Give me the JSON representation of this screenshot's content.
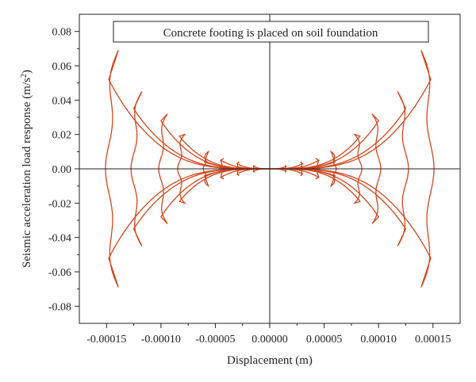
{
  "chart_data": {
    "type": "line",
    "title": "",
    "annotation": "Concrete footing is placed on soil foundation",
    "xlabel": "Displacement (m)",
    "ylabel_main": "Seismic acceleration load response (m/s",
    "ylabel_sup": "2",
    "ylabel_end": ")",
    "xlim": [
      -0.000175,
      0.000175
    ],
    "ylim": [
      -0.09,
      0.09
    ],
    "x_ticks": [
      -0.00015,
      -0.0001,
      -5e-05,
      0,
      5e-05,
      0.0001,
      0.00015
    ],
    "x_tick_labels": [
      "-0.00015",
      "-0.00010",
      "-0.00005",
      "0.00000",
      "0.00005",
      "0.00010",
      "0.00015"
    ],
    "y_ticks": [
      -0.08,
      -0.06,
      -0.04,
      -0.02,
      0,
      0.02,
      0.04,
      0.06,
      0.08
    ],
    "y_tick_labels": [
      "-0.08",
      "-0.06",
      "-0.04",
      "-0.02",
      "0.00",
      "0.02",
      "0.04",
      "0.06",
      "0.08"
    ],
    "grid": false,
    "line_color": "#d2461e",
    "loops": [
      {
        "xmax": 1.5e-05,
        "ymax": 0.002,
        "peak": 0.002,
        "body": 0.0015
      },
      {
        "xmax": 3e-05,
        "ymax": 0.004,
        "peak": 0.004,
        "body": 0.003
      },
      {
        "xmax": 4.5e-05,
        "ymax": 0.008,
        "peak": 0.006,
        "body": 0.005
      },
      {
        "xmax": 6e-05,
        "ymax": 0.01,
        "peak": 0.01,
        "body": 0.004
      },
      {
        "xmax": 8.3e-05,
        "ymax": 0.02,
        "peak": 0.02,
        "body": 0.019
      },
      {
        "xmax": 0.0001,
        "ymax": 0.03,
        "peak": 0.032,
        "body": 0.028
      },
      {
        "xmax": 0.000125,
        "ymax": 0.045,
        "peak": 0.045,
        "body": 0.035
      },
      {
        "xmax": 0.000148,
        "ymax": 0.069,
        "peak": 0.069,
        "body": 0.052
      }
    ]
  }
}
